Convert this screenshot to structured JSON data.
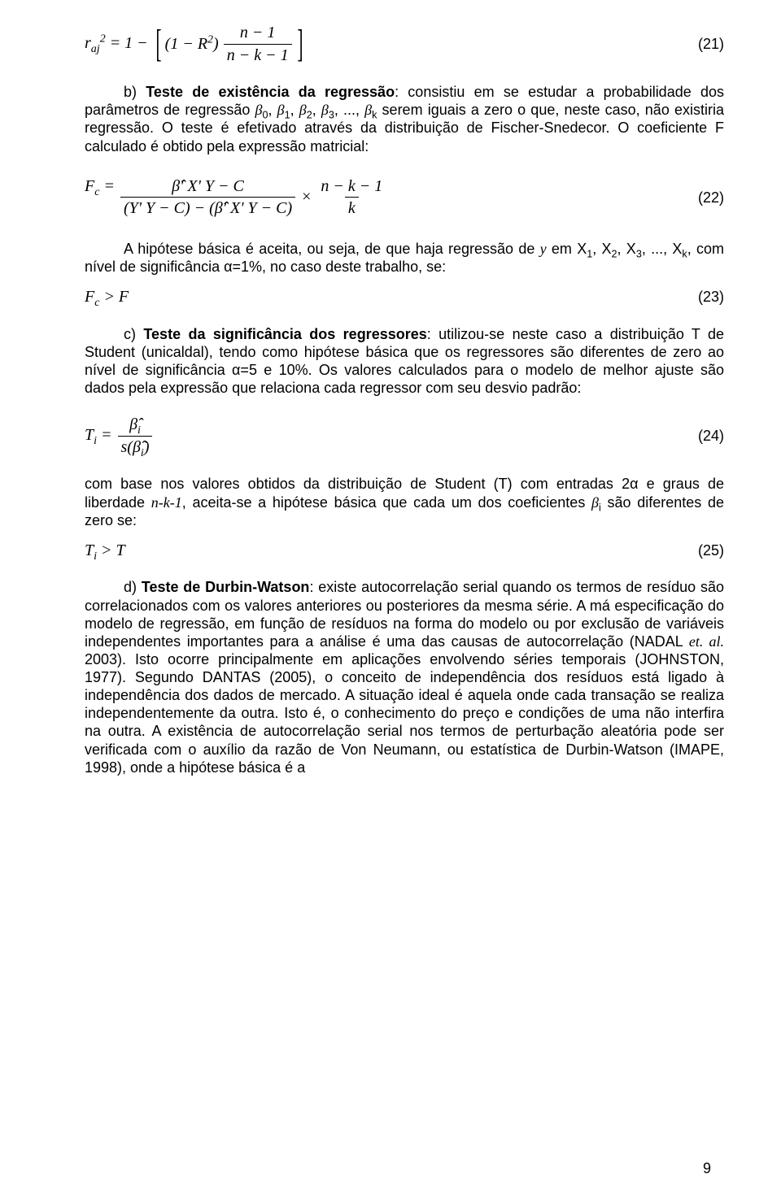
{
  "colors": {
    "text": "#000000",
    "background": "#ffffff"
  },
  "typography": {
    "body_font": "Arial",
    "math_font": "Times New Roman",
    "body_size_pt": 14
  },
  "page_number": "9",
  "eq21": {
    "lhs_html": "r<sub>aj</sub><sup>2</sup> = 1 − ",
    "inner_left_html": "(1 − R<sup>2</sup>)",
    "frac_num_html": "n − 1",
    "frac_den_html": "n − k − 1",
    "number": "(21)"
  },
  "para_b_html": "b) <span class='bold'>Teste de existência da regressão</span>: consistiu em se estudar a probabilidade dos parâmetros de regressão <span class='i'>β</span><sub>0</sub>, <span class='i'>β</span><sub>1</sub>, <span class='i'>β</span><sub>2</sub>, <span class='i'>β</span><sub>3</sub>, ..., <span class='i'>β</span><sub>k</sub> serem iguais a zero o que, neste caso, não existiria regressão. O teste é efetivado através da distribuição de Fischer-Snedecor. O coeficiente F calculado é obtido pela expressão matricial:",
  "eq22": {
    "lhs_html": "F<sub>c</sub> = ",
    "big_num_html": "β&#770;' X' Y − C",
    "big_den_html": "(Y' Y − C) − (β&#770;' X' Y − C)",
    "small_num_html": "n − k − 1",
    "small_den_html": "k",
    "number": "(22)"
  },
  "para_after22_html": "A hipótese básica é aceita, ou seja, de que haja regressão de <span class='i'>y</span> em X<sub>1</sub>, X<sub>2</sub>, X<sub>3</sub>, ..., X<sub>k</sub>, com nível de significância α=1%, no caso deste trabalho, se:",
  "eq23": {
    "expr_html": "F<sub>c</sub> &gt; F",
    "number": "(23)"
  },
  "para_c_html": "c) <span class='bold'>Teste da significância dos regressores</span>: utilizou-se neste caso a distribuição T de Student (unicaldal), tendo como hipótese básica que os regressores são diferentes de zero ao nível de significância α=5 e 10%. Os valores calculados para o modelo de melhor ajuste são dados pela expressão que relaciona cada regressor com seu desvio padrão:",
  "eq24": {
    "lhs_html": "T<sub>i</sub> = ",
    "num_html": "β&#770;<sub>i</sub>",
    "den_html": "s(β&#770;<sub>i</sub>)",
    "number": "(24)"
  },
  "para_after24_html": "com base nos valores obtidos da distribuição de Student (T) com entradas 2α e graus de liberdade <span class='i'>n-k-1</span>, aceita-se a hipótese básica que cada um dos coeficientes <span class='i'>β</span><sub>i</sub> são diferentes de zero se:",
  "eq25": {
    "expr_html": "T<sub>i</sub> &gt; T",
    "number": "(25)"
  },
  "para_d_html": "d) <span class='bold'>Teste de Durbin-Watson</span>: existe autocorrelação serial quando os termos de resíduo são correlacionados com os valores anteriores ou posteriores da mesma série. A má especificação do modelo de regressão, em função de resíduos na forma do modelo ou por exclusão de variáveis independentes importantes para a análise é uma das causas de autocorrelação (NADAL <span class='i'>et. al.</span> 2003). Isto ocorre principalmente em aplicações envolvendo séries temporais (JOHNSTON, 1977). Segundo DANTAS (2005), o conceito de independência dos resíduos está ligado à independência dos dados de mercado. A situação ideal é aquela onde cada transação se realiza independentemente da outra. Isto é, o conhecimento do preço e condições de uma não interfira na outra. A existência de autocorrelação serial nos termos de perturbação aleatória pode ser verificada com o auxílio da razão de Von Neumann, ou estatística de Durbin-Watson (IMAPE, 1998), onde a hipótese básica é a"
}
